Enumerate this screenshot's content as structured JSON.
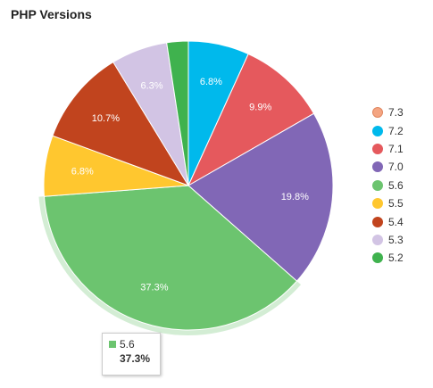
{
  "chart_data": {
    "type": "pie",
    "title": "PHP Versions",
    "slices": [
      {
        "name": "7.3",
        "value": 0.0,
        "label": "",
        "color": "#f4a582"
      },
      {
        "name": "7.2",
        "value": 6.8,
        "label": "6.8%",
        "color": "#00b9ec"
      },
      {
        "name": "7.1",
        "value": 9.9,
        "label": "9.9%",
        "color": "#e5595d"
      },
      {
        "name": "7.0",
        "value": 19.8,
        "label": "19.8%",
        "color": "#8167b6"
      },
      {
        "name": "5.6",
        "value": 37.3,
        "label": "37.3%",
        "color": "#6cc46f"
      },
      {
        "name": "5.5",
        "value": 6.8,
        "label": "6.8%",
        "color": "#ffc72f"
      },
      {
        "name": "5.4",
        "value": 10.7,
        "label": "10.7%",
        "color": "#c1441e"
      },
      {
        "name": "5.3",
        "value": 6.3,
        "label": "6.3%",
        "color": "#d2c4e4"
      },
      {
        "name": "5.2",
        "value": 2.4,
        "label": "",
        "color": "#3fb24e"
      }
    ],
    "highlighted": "5.6",
    "legend_position": "right"
  },
  "tooltip": {
    "name": "5.6",
    "value": "37.3%",
    "color": "#6cc46f"
  }
}
